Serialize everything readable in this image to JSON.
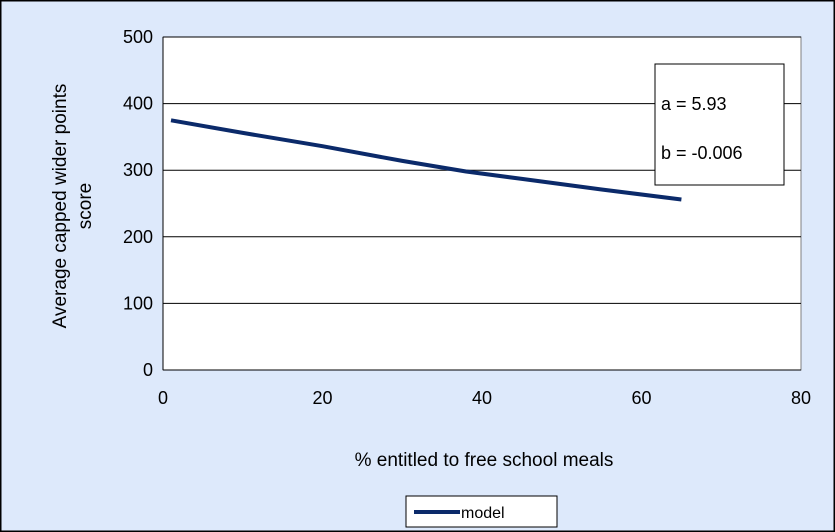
{
  "colors": {
    "chart_background": "#dde9fb",
    "plot_background": "#ffffff",
    "line": "#0b2a6a",
    "gridline": "#000000"
  },
  "annotation": {
    "a_text": "a = 5.93",
    "b_text": "b = -0.006"
  },
  "chart_data": {
    "type": "line",
    "title": "",
    "xlabel": "% entitled to free school meals",
    "ylabel_lines": [
      "Average capped wider points",
      "score"
    ],
    "xlim": [
      0,
      80
    ],
    "ylim": [
      0,
      500
    ],
    "x_ticks": [
      0,
      20,
      40,
      60,
      80
    ],
    "y_ticks": [
      0,
      100,
      200,
      300,
      400,
      500
    ],
    "grid": "horizontal",
    "legend_position": "bottom",
    "series": [
      {
        "name": "model",
        "x": [
          1,
          10,
          20,
          30,
          38,
          45,
          55,
          65
        ],
        "y": [
          375,
          356,
          336,
          314,
          298,
          287,
          271,
          256
        ]
      }
    ]
  }
}
